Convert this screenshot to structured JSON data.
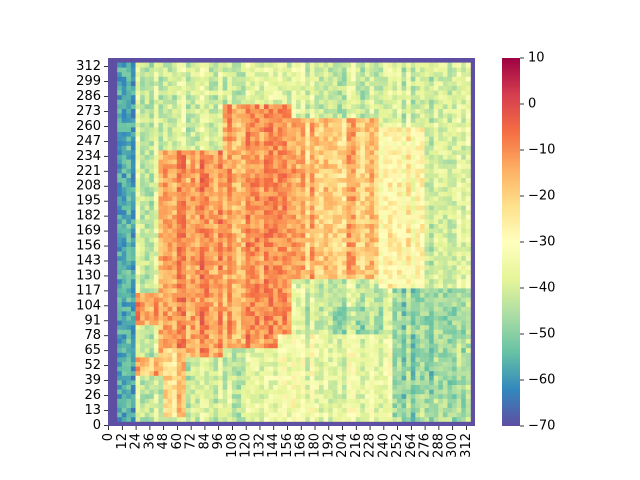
{
  "chart_data": {
    "type": "heatmap",
    "title": "",
    "xlabel": "",
    "ylabel": "",
    "x_tick_labels": [
      "0",
      "12",
      "24",
      "36",
      "48",
      "60",
      "72",
      "84",
      "96",
      "108",
      "120",
      "132",
      "144",
      "156",
      "168",
      "180",
      "192",
      "204",
      "216",
      "228",
      "240",
      "252",
      "264",
      "276",
      "288",
      "300",
      "312"
    ],
    "y_tick_labels": [
      "0",
      "13",
      "26",
      "39",
      "52",
      "65",
      "78",
      "91",
      "104",
      "117",
      "130",
      "143",
      "156",
      "169",
      "182",
      "195",
      "208",
      "221",
      "234",
      "247",
      "260",
      "273",
      "286",
      "299",
      "312"
    ],
    "x_range": [
      0,
      320
    ],
    "y_range": [
      0,
      320
    ],
    "origin": "lower-left",
    "colormap": "Spectral_r",
    "colorbar": {
      "min": -70,
      "max": 10,
      "tick_labels": [
        "10",
        "0",
        "−10",
        "−20",
        "−30",
        "−40",
        "−50",
        "−60",
        "−70"
      ],
      "tick_values": [
        10,
        0,
        -10,
        -20,
        -30,
        -40,
        -50,
        -60,
        -70
      ]
    },
    "background_value": -70,
    "approximate_regions": [
      {
        "x": [
          9,
          315
        ],
        "y": [
          5,
          318
        ],
        "value": -40,
        "note": "overall field"
      },
      {
        "x": [
          45,
          100
        ],
        "y": [
          60,
          240
        ],
        "value": -12
      },
      {
        "x": [
          100,
          160
        ],
        "y": [
          70,
          280
        ],
        "value": -13
      },
      {
        "x": [
          160,
          235
        ],
        "y": [
          130,
          270
        ],
        "value": -17
      },
      {
        "x": [
          235,
          275
        ],
        "y": [
          120,
          260
        ],
        "value": -28
      },
      {
        "x": [
          25,
          50
        ],
        "y": [
          90,
          115
        ],
        "value": -12
      },
      {
        "x": [
          25,
          50
        ],
        "y": [
          45,
          60
        ],
        "value": -15
      },
      {
        "x": [
          50,
          70
        ],
        "y": [
          10,
          70
        ],
        "value": -20
      },
      {
        "x": [
          150,
          250
        ],
        "y": [
          5,
          80
        ],
        "value": -35
      },
      {
        "x": [
          250,
          315
        ],
        "y": [
          5,
          120
        ],
        "value": -48
      },
      {
        "x": [
          9,
          25
        ],
        "y": [
          5,
          318
        ],
        "value": -55
      },
      {
        "x": [
          195,
          240
        ],
        "y": [
          80,
          105
        ],
        "value": -45
      },
      {
        "x": [
          270,
          300
        ],
        "y": [
          5,
          28
        ],
        "value": -45
      }
    ]
  },
  "colors": {
    "background": "#ffffff",
    "heatmap_floor": "#5e4fa2",
    "text": "#000000"
  }
}
